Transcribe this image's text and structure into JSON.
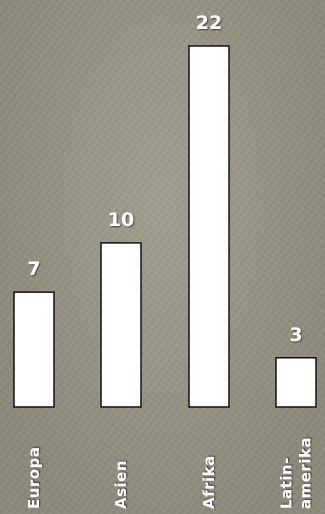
{
  "chart_data": {
    "type": "bar",
    "categories": [
      "Europa",
      "Asien",
      "Afrika",
      "Latin-amerika"
    ],
    "category_lines": [
      [
        "Europa"
      ],
      [
        "Asien"
      ],
      [
        "Afrika"
      ],
      [
        "Latin-",
        "amerika"
      ]
    ],
    "values": [
      7,
      10,
      22,
      3
    ],
    "title": "",
    "xlabel": "",
    "ylabel": "",
    "ylim": [
      0,
      22
    ],
    "grid": false,
    "legend": "none",
    "orientation": "vertical",
    "category_label_rotation": "vertical",
    "value_labels_shown": true
  },
  "colors": {
    "background": "#9c9988",
    "bar_fill": "#ffffff",
    "bar_stroke": "#111111",
    "label_text": "#ffffff"
  }
}
